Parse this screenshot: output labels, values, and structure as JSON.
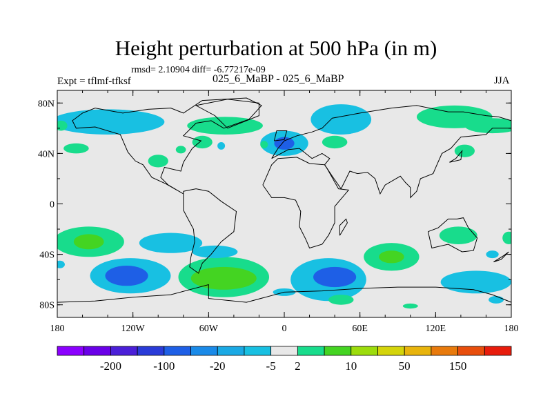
{
  "header": {
    "title": "Height perturbation at 500 hPa (in m)",
    "stats": "rmsd= 2.10904 diff= -6.77217e-09",
    "expt": "Expt = tflmf-tfksf",
    "case": "025_6_MaBP - 025_6_MaBP",
    "season": "JJA"
  },
  "chart_data": {
    "type": "heatmap",
    "title": "Height perturbation at 500 hPa (in m)",
    "subtitle": "025_6_MaBP - 025_6_MaBP",
    "xlabel": "",
    "ylabel": "",
    "xlim": [
      -180,
      180
    ],
    "ylim": [
      -90,
      90
    ],
    "x_ticks": [
      -180,
      -120,
      -60,
      0,
      60,
      120,
      180
    ],
    "x_tick_labels": [
      "180",
      "120W",
      "60W",
      "0",
      "60E",
      "120E",
      "180"
    ],
    "y_ticks": [
      80,
      40,
      0,
      -40,
      -80
    ],
    "y_tick_labels": [
      "80N",
      "40N",
      "0",
      "40S",
      "80S"
    ],
    "colorbar": {
      "colors": [
        "#8b00ff",
        "#6a00e8",
        "#4b1fd8",
        "#2a3bd8",
        "#1e5fe6",
        "#1a8ae8",
        "#1aa9e4",
        "#18c0e2",
        "#e8e8e8",
        "#18dc8c",
        "#44d422",
        "#9cdc0c",
        "#d4d40a",
        "#e8b40c",
        "#e87a0c",
        "#e84e0c",
        "#e81c0c"
      ],
      "labels": [
        "-200",
        "-100",
        "-20",
        "-5",
        "2",
        "10",
        "50",
        "150"
      ],
      "label_after_box": [
        1,
        3,
        5,
        7,
        8,
        10,
        12,
        14
      ]
    },
    "anomalies": [
      {
        "lon": -140,
        "lat": 65,
        "rx": 45,
        "ry": 10,
        "value": -5
      },
      {
        "lon": -177,
        "lat": 62,
        "rx": 5,
        "ry": 4,
        "value": 5
      },
      {
        "lon": -165,
        "lat": 44,
        "rx": 10,
        "ry": 4,
        "value": 5
      },
      {
        "lon": -47,
        "lat": 62,
        "rx": 30,
        "ry": 7,
        "value": 5
      },
      {
        "lon": -65,
        "lat": 49,
        "rx": 8,
        "ry": 5,
        "value": 5
      },
      {
        "lon": -100,
        "lat": 34,
        "rx": 8,
        "ry": 5,
        "value": 5
      },
      {
        "lon": -50,
        "lat": 46,
        "rx": 3,
        "ry": 3,
        "value": -5
      },
      {
        "lon": -82,
        "lat": 43,
        "rx": 4,
        "ry": 3,
        "value": 5
      },
      {
        "lon": 0,
        "lat": 48,
        "rx": 19,
        "ry": 10,
        "value": -5
      },
      {
        "lon": 0,
        "lat": 48,
        "rx": 8,
        "ry": 5,
        "value": -20
      },
      {
        "lon": -16,
        "lat": 47,
        "rx": 3,
        "ry": 3,
        "value": 5
      },
      {
        "lon": 45,
        "lat": 67,
        "rx": 24,
        "ry": 12,
        "value": -5
      },
      {
        "lon": 40,
        "lat": 49,
        "rx": 10,
        "ry": 5,
        "value": 5
      },
      {
        "lon": 135,
        "lat": 69,
        "rx": 30,
        "ry": 9,
        "value": 5
      },
      {
        "lon": 165,
        "lat": 62,
        "rx": 22,
        "ry": 6,
        "value": 5
      },
      {
        "lon": 143,
        "lat": 42,
        "rx": 8,
        "ry": 5,
        "value": 5
      },
      {
        "lon": -155,
        "lat": -30,
        "rx": 28,
        "ry": 12,
        "value": 5
      },
      {
        "lon": -155,
        "lat": -30,
        "rx": 12,
        "ry": 6,
        "value": 10
      },
      {
        "lon": -178,
        "lat": -48,
        "rx": 4,
        "ry": 3,
        "value": -5
      },
      {
        "lon": -122,
        "lat": -57,
        "rx": 32,
        "ry": 14,
        "value": -5
      },
      {
        "lon": -125,
        "lat": -57,
        "rx": 17,
        "ry": 8,
        "value": -20
      },
      {
        "lon": -90,
        "lat": -31,
        "rx": 25,
        "ry": 8,
        "value": -5
      },
      {
        "lon": -48,
        "lat": -58,
        "rx": 36,
        "ry": 16,
        "value": 5
      },
      {
        "lon": -48,
        "lat": -59,
        "rx": 26,
        "ry": 9,
        "value": 10
      },
      {
        "lon": -55,
        "lat": -38,
        "rx": 18,
        "ry": 5,
        "value": -5
      },
      {
        "lon": 35,
        "lat": -60,
        "rx": 30,
        "ry": 17,
        "value": -5
      },
      {
        "lon": 40,
        "lat": -58,
        "rx": 17,
        "ry": 8,
        "value": -20
      },
      {
        "lon": 45,
        "lat": -76,
        "rx": 10,
        "ry": 4,
        "value": 5
      },
      {
        "lon": 85,
        "lat": -42,
        "rx": 22,
        "ry": 11,
        "value": 5
      },
      {
        "lon": 85,
        "lat": -42,
        "rx": 10,
        "ry": 5,
        "value": 10
      },
      {
        "lon": 138,
        "lat": -25,
        "rx": 15,
        "ry": 7,
        "value": 5
      },
      {
        "lon": 178,
        "lat": -27,
        "rx": 5,
        "ry": 5,
        "value": 5
      },
      {
        "lon": 165,
        "lat": -40,
        "rx": 5,
        "ry": 3,
        "value": -5
      },
      {
        "lon": 152,
        "lat": -62,
        "rx": 28,
        "ry": 9,
        "value": -5
      },
      {
        "lon": 168,
        "lat": -76,
        "rx": 6,
        "ry": 3,
        "value": -5
      },
      {
        "lon": 100,
        "lat": -81,
        "rx": 6,
        "ry": 2,
        "value": 5
      },
      {
        "lon": 0,
        "lat": -70,
        "rx": 9,
        "ry": 3,
        "value": -5
      }
    ],
    "coastlines": [
      [
        [
          -160,
          72
        ],
        [
          -150,
          76
        ],
        [
          -128,
          72
        ],
        [
          -108,
          75
        ],
        [
          -90,
          76
        ],
        [
          -80,
          72
        ],
        [
          -65,
          82
        ],
        [
          -30,
          84
        ],
        [
          -18,
          78
        ],
        [
          -28,
          67
        ],
        [
          -48,
          60
        ],
        [
          -58,
          66
        ],
        [
          -70,
          64
        ],
        [
          -80,
          54
        ],
        [
          -66,
          50
        ],
        [
          -73,
          44
        ],
        [
          -80,
          33
        ],
        [
          -82,
          26
        ],
        [
          -95,
          29
        ],
        [
          -98,
          21
        ],
        [
          -92,
          15
        ],
        [
          -80,
          8
        ],
        [
          -94,
          16
        ],
        [
          -105,
          21
        ],
        [
          -112,
          31
        ],
        [
          -118,
          34
        ],
        [
          -124,
          41
        ],
        [
          -130,
          55
        ],
        [
          -150,
          61
        ],
        [
          -165,
          60
        ],
        [
          -168,
          66
        ],
        [
          -160,
          72
        ]
      ],
      [
        [
          -80,
          10
        ],
        [
          -70,
          12
        ],
        [
          -60,
          10
        ],
        [
          -50,
          2
        ],
        [
          -38,
          -6
        ],
        [
          -40,
          -22
        ],
        [
          -50,
          -30
        ],
        [
          -58,
          -40
        ],
        [
          -65,
          -47
        ],
        [
          -68,
          -55
        ],
        [
          -75,
          -50
        ],
        [
          -74,
          -42
        ],
        [
          -71,
          -30
        ],
        [
          -72,
          -20
        ],
        [
          -80,
          -5
        ],
        [
          -80,
          10
        ]
      ],
      [
        [
          -10,
          36
        ],
        [
          -5,
          44
        ],
        [
          0,
          50
        ],
        [
          10,
          54
        ],
        [
          22,
          57
        ],
        [
          30,
          60
        ],
        [
          38,
          68
        ],
        [
          60,
          72
        ],
        [
          85,
          76
        ],
        [
          105,
          78
        ],
        [
          130,
          73
        ],
        [
          142,
          73
        ],
        [
          160,
          70
        ],
        [
          170,
          69
        ],
        [
          180,
          66
        ],
        [
          180,
          60
        ],
        [
          165,
          60
        ],
        [
          160,
          55
        ],
        [
          140,
          53
        ],
        [
          132,
          44
        ],
        [
          125,
          40
        ],
        [
          121,
          31
        ],
        [
          118,
          24
        ],
        [
          108,
          20
        ],
        [
          105,
          10
        ],
        [
          100,
          5
        ],
        [
          100,
          13
        ],
        [
          96,
          17
        ],
        [
          92,
          22
        ],
        [
          80,
          15
        ],
        [
          76,
          8
        ],
        [
          72,
          20
        ],
        [
          66,
          25
        ],
        [
          58,
          24
        ],
        [
          52,
          26
        ],
        [
          45,
          12
        ],
        [
          38,
          22
        ],
        [
          32,
          31
        ],
        [
          36,
          36
        ],
        [
          30,
          40
        ],
        [
          22,
          36
        ],
        [
          12,
          44
        ],
        [
          3,
          43
        ],
        [
          -10,
          36
        ]
      ],
      [
        [
          -17,
          15
        ],
        [
          -10,
          31
        ],
        [
          -5,
          36
        ],
        [
          10,
          37
        ],
        [
          20,
          32
        ],
        [
          32,
          31
        ],
        [
          34,
          28
        ],
        [
          43,
          12
        ],
        [
          51,
          11
        ],
        [
          40,
          -2
        ],
        [
          40,
          -15
        ],
        [
          35,
          -25
        ],
        [
          30,
          -32
        ],
        [
          20,
          -35
        ],
        [
          17,
          -28
        ],
        [
          12,
          -18
        ],
        [
          13,
          -6
        ],
        [
          9,
          3
        ],
        [
          0,
          5
        ],
        [
          -10,
          5
        ],
        [
          -17,
          15
        ]
      ],
      [
        [
          114,
          -22
        ],
        [
          122,
          -19
        ],
        [
          130,
          -12
        ],
        [
          137,
          -12
        ],
        [
          142,
          -11
        ],
        [
          146,
          -19
        ],
        [
          153,
          -27
        ],
        [
          150,
          -37
        ],
        [
          141,
          -38
        ],
        [
          130,
          -32
        ],
        [
          117,
          -35
        ],
        [
          114,
          -22
        ]
      ],
      [
        [
          -180,
          -78
        ],
        [
          -150,
          -77
        ],
        [
          -120,
          -74
        ],
        [
          -90,
          -72
        ],
        [
          -60,
          -64
        ],
        [
          -60,
          -75
        ],
        [
          -30,
          -78
        ],
        [
          0,
          -70
        ],
        [
          30,
          -69
        ],
        [
          60,
          -67
        ],
        [
          90,
          -66
        ],
        [
          120,
          -66
        ],
        [
          150,
          -68
        ],
        [
          165,
          -72
        ],
        [
          180,
          -78
        ]
      ],
      [
        [
          -45,
          60
        ],
        [
          -20,
          70
        ],
        [
          -20,
          80
        ],
        [
          -45,
          83
        ],
        [
          -70,
          78
        ],
        [
          -55,
          70
        ],
        [
          -45,
          60
        ]
      ],
      [
        [
          44,
          -25
        ],
        [
          50,
          -15
        ],
        [
          49,
          -12
        ],
        [
          44,
          -17
        ],
        [
          44,
          -25
        ]
      ],
      [
        [
          -8,
          50
        ],
        [
          0,
          51
        ],
        [
          2,
          58
        ],
        [
          -6,
          58
        ],
        [
          -8,
          50
        ]
      ],
      [
        [
          131,
          33
        ],
        [
          136,
          36
        ],
        [
          141,
          42
        ],
        [
          140,
          35
        ],
        [
          131,
          33
        ]
      ],
      [
        [
          166,
          -46
        ],
        [
          174,
          -41
        ],
        [
          178,
          -38
        ],
        [
          172,
          -44
        ],
        [
          166,
          -46
        ]
      ]
    ]
  }
}
